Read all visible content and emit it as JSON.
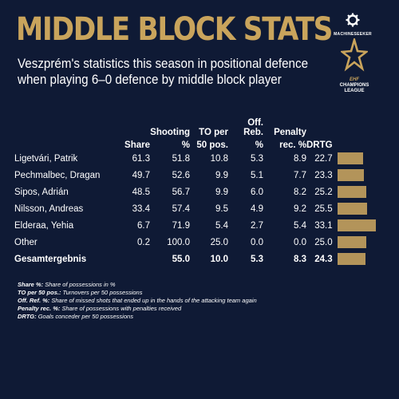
{
  "header": {
    "title": "MIDDLE BLOCK STATS",
    "subtitle_line1": "Veszprém's statistics this season in positional defence",
    "subtitle_line2": "when playing 6–0 defence by middle block player"
  },
  "brand": {
    "machineseeker": "MACHINESEEKER",
    "ehf": "EHF",
    "champions": "CHAMPIONS",
    "league": "LEAGUE"
  },
  "columns": {
    "share": [
      "",
      "Share"
    ],
    "shooting": [
      "Shooting",
      "%"
    ],
    "to": [
      "TO per",
      "50 pos."
    ],
    "off": [
      "Off. Reb.",
      "%"
    ],
    "pen": [
      "Penalty",
      "rec. %"
    ],
    "drtg": [
      "",
      "DRTG"
    ]
  },
  "chart_data": {
    "type": "table",
    "rows": [
      {
        "name": "Ligetvári, Patrik",
        "share": "61.3",
        "shooting": "51.8",
        "to": "10.8",
        "off": "5.3",
        "pen": "8.9",
        "drtg": "22.7",
        "drtg_value": 22.7
      },
      {
        "name": "Pechmalbec, Dragan",
        "share": "49.7",
        "shooting": "52.6",
        "to": "9.9",
        "off": "5.1",
        "pen": "7.7",
        "drtg": "23.3",
        "drtg_value": 23.3
      },
      {
        "name": "Sipos, Adrián",
        "share": "48.5",
        "shooting": "56.7",
        "to": "9.9",
        "off": "6.0",
        "pen": "8.2",
        "drtg": "25.2",
        "drtg_value": 25.2
      },
      {
        "name": "Nilsson, Andreas",
        "share": "33.4",
        "shooting": "57.4",
        "to": "9.5",
        "off": "4.9",
        "pen": "9.2",
        "drtg": "25.5",
        "drtg_value": 25.5
      },
      {
        "name": "Elderaa, Yehia",
        "share": "6.7",
        "shooting": "71.9",
        "to": "5.4",
        "off": "2.7",
        "pen": "5.4",
        "drtg": "33.1",
        "drtg_value": 33.1
      },
      {
        "name": "Other",
        "share": "0.2",
        "shooting": "100.0",
        "to": "25.0",
        "off": "0.0",
        "pen": "0.0",
        "drtg": "25.0",
        "drtg_value": 25.0
      }
    ],
    "total": {
      "name": "Gesamtergebnis",
      "share": "",
      "shooting": "55.0",
      "to": "10.0",
      "off": "5.3",
      "pen": "8.3",
      "drtg": "24.3",
      "drtg_value": 24.3
    },
    "bar_max": 33.1,
    "bar_color": "#b3945a"
  },
  "notes": [
    {
      "term": "Share %:",
      "text": " Share of possessions in %"
    },
    {
      "term": "TO per 50 pos.:",
      "text": " Turnovers per 50 possessions"
    },
    {
      "term": "Off. Ref. %:",
      "text": " Share of missed shots that ended up in the hands of the attacking team again"
    },
    {
      "term": "Penalty rec. %:",
      "text": " Share of possessions with penalties received"
    },
    {
      "term": "DRTG:",
      "text": " Goals conceder per 50 possessions"
    }
  ]
}
